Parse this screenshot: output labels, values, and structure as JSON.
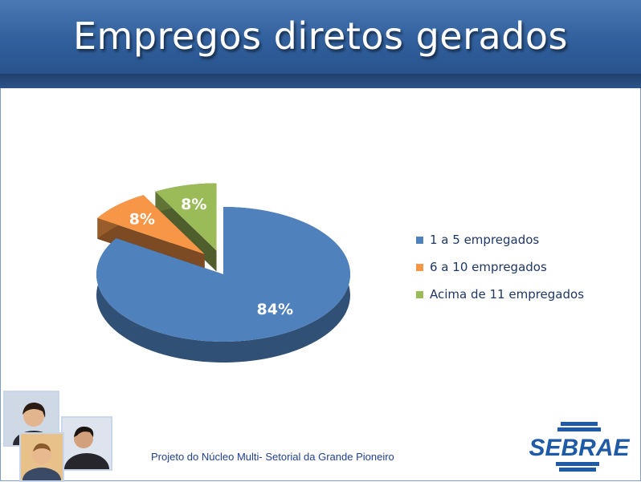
{
  "slide": {
    "title": "Empregos diretos gerados",
    "footer": "Projeto do Núcleo Multi- Setorial da Grande Pioneiro",
    "logo_text": "SEBRAE",
    "colors": {
      "header": "#31609d",
      "title_text": "#ffffff",
      "footer_text": "#1f3f8f",
      "logo": "#1f5aa6"
    }
  },
  "chart_data": {
    "type": "pie",
    "title": "",
    "exploded": true,
    "three_d": true,
    "categories": [
      "1 a 5 empregados",
      "6 a 10 empregados",
      "Acima de 11 empregados"
    ],
    "values": [
      84,
      8,
      8
    ],
    "labels": [
      "84%",
      "8%",
      "8%"
    ],
    "colors": [
      "#4f81bd",
      "#f79646",
      "#9bbb59"
    ],
    "legend_position": "right"
  }
}
